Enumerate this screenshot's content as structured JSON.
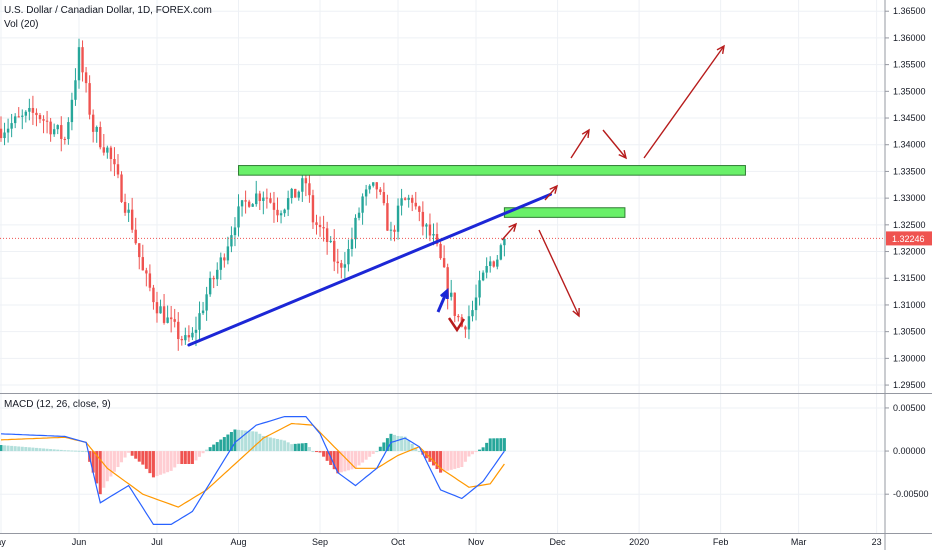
{
  "header": {
    "title": "U.S. Dollar / Canadian Dollar, 1D, FOREX.com",
    "volume_label": "Vol (20)",
    "macd_label": "MACD (12, 26, close, 9)"
  },
  "price_axis": {
    "ticks": [
      "1.36500",
      "1.36000",
      "1.35500",
      "1.35000",
      "1.34500",
      "1.34000",
      "1.33500",
      "1.33000",
      "1.32500",
      "1.32000",
      "1.31500",
      "1.31000",
      "1.30500",
      "1.30000",
      "1.29500"
    ],
    "values": [
      1.365,
      1.36,
      1.355,
      1.35,
      1.345,
      1.34,
      1.335,
      1.33,
      1.325,
      1.32,
      1.315,
      1.31,
      1.305,
      1.3,
      1.295
    ],
    "current_price": "1.32246",
    "current_value": 1.32246
  },
  "macd_axis": {
    "ticks": [
      "0.00500",
      "0.00000",
      "-0.00500"
    ],
    "values": [
      0.005,
      0,
      -0.005
    ]
  },
  "time_axis": {
    "labels": [
      "ay",
      "Jun",
      "Jul",
      "Aug",
      "Sep",
      "Oct",
      "Nov",
      "Dec",
      "2020",
      "Feb",
      "Mar",
      "23"
    ]
  },
  "colors": {
    "up": "#26a69a",
    "down": "#ef5350",
    "trendline": "#1c27d6",
    "zone": "#69f069",
    "zone_border": "#2e7d32",
    "arrow": "#b71c1c",
    "blue_arrow": "#1c27d6",
    "macd_line": "#2962ff",
    "signal_line": "#ff9800",
    "price_line": "#ef5350"
  },
  "chart_data": {
    "type": "candlestick",
    "title": "U.S. Dollar / Canadian Dollar, 1D, FOREX.com",
    "x_range": [
      "2019-05-01",
      "2020-03-25"
    ],
    "ylim": [
      1.2937,
      1.3671
    ],
    "month_index": [
      0,
      22,
      44,
      67,
      90,
      112,
      134,
      157,
      180,
      203,
      225,
      247
    ],
    "price_path": [
      [
        0,
        1.343
      ],
      [
        10,
        1.346
      ],
      [
        18,
        1.341
      ],
      [
        22,
        1.357
      ],
      [
        26,
        1.343
      ],
      [
        30,
        1.339
      ],
      [
        34,
        1.331
      ],
      [
        37,
        1.325
      ],
      [
        40,
        1.316
      ],
      [
        44,
        1.31
      ],
      [
        48,
        1.306
      ],
      [
        52,
        1.303
      ],
      [
        54,
        1.304
      ],
      [
        58,
        1.312
      ],
      [
        62,
        1.318
      ],
      [
        66,
        1.326
      ],
      [
        70,
        1.33
      ],
      [
        74,
        1.331
      ],
      [
        78,
        1.328
      ],
      [
        82,
        1.33
      ],
      [
        86,
        1.333
      ],
      [
        88,
        1.326
      ],
      [
        92,
        1.322
      ],
      [
        95,
        1.317
      ],
      [
        98,
        1.32
      ],
      [
        102,
        1.33
      ],
      [
        106,
        1.332
      ],
      [
        110,
        1.323
      ],
      [
        113,
        1.329
      ],
      [
        116,
        1.33
      ],
      [
        118,
        1.326
      ],
      [
        122,
        1.322
      ],
      [
        124,
        1.318
      ],
      [
        126,
        1.313
      ],
      [
        128,
        1.309
      ],
      [
        130,
        1.306
      ],
      [
        133,
        1.309
      ],
      [
        136,
        1.315
      ],
      [
        138,
        1.318
      ],
      [
        140,
        1.319
      ],
      [
        142,
        1.3224
      ]
    ],
    "trendline": [
      [
        53,
        1.3025
      ],
      [
        155,
        1.3307
      ]
    ],
    "zones": [
      {
        "x": [
          67,
          210
        ],
        "y": [
          1.3343,
          1.3361
        ]
      },
      {
        "x": [
          142,
          176
        ],
        "y": [
          1.3264,
          1.3282
        ]
      }
    ],
    "macd": {
      "ylim": [
        -0.0095,
        0.0065
      ],
      "macd_path": [
        [
          0,
          0.002
        ],
        [
          18,
          0.0017
        ],
        [
          24,
          0.001
        ],
        [
          28,
          -0.006
        ],
        [
          36,
          -0.004
        ],
        [
          43,
          -0.0085
        ],
        [
          48,
          -0.0085
        ],
        [
          54,
          -0.007
        ],
        [
          60,
          -0.003
        ],
        [
          66,
          0.001
        ],
        [
          72,
          0.003
        ],
        [
          80,
          0.004
        ],
        [
          86,
          0.004
        ],
        [
          90,
          0.002
        ],
        [
          95,
          -0.0025
        ],
        [
          100,
          -0.004
        ],
        [
          106,
          -0.002
        ],
        [
          110,
          0.001
        ],
        [
          114,
          0.0015
        ],
        [
          118,
          0.0005
        ],
        [
          124,
          -0.0045
        ],
        [
          130,
          -0.0055
        ],
        [
          136,
          -0.0035
        ],
        [
          142,
          0.0
        ]
      ],
      "signal_path": [
        [
          0,
          0.0013
        ],
        [
          18,
          0.0016
        ],
        [
          24,
          0.001
        ],
        [
          30,
          -0.002
        ],
        [
          40,
          -0.005
        ],
        [
          50,
          -0.0065
        ],
        [
          58,
          -0.0045
        ],
        [
          66,
          -0.0015
        ],
        [
          74,
          0.0015
        ],
        [
          82,
          0.0032
        ],
        [
          88,
          0.003
        ],
        [
          94,
          0.0005
        ],
        [
          100,
          -0.002
        ],
        [
          106,
          -0.002
        ],
        [
          112,
          -0.0005
        ],
        [
          118,
          0.0005
        ],
        [
          124,
          -0.002
        ],
        [
          132,
          -0.0042
        ],
        [
          138,
          -0.0038
        ],
        [
          142,
          -0.0015
        ]
      ]
    }
  }
}
